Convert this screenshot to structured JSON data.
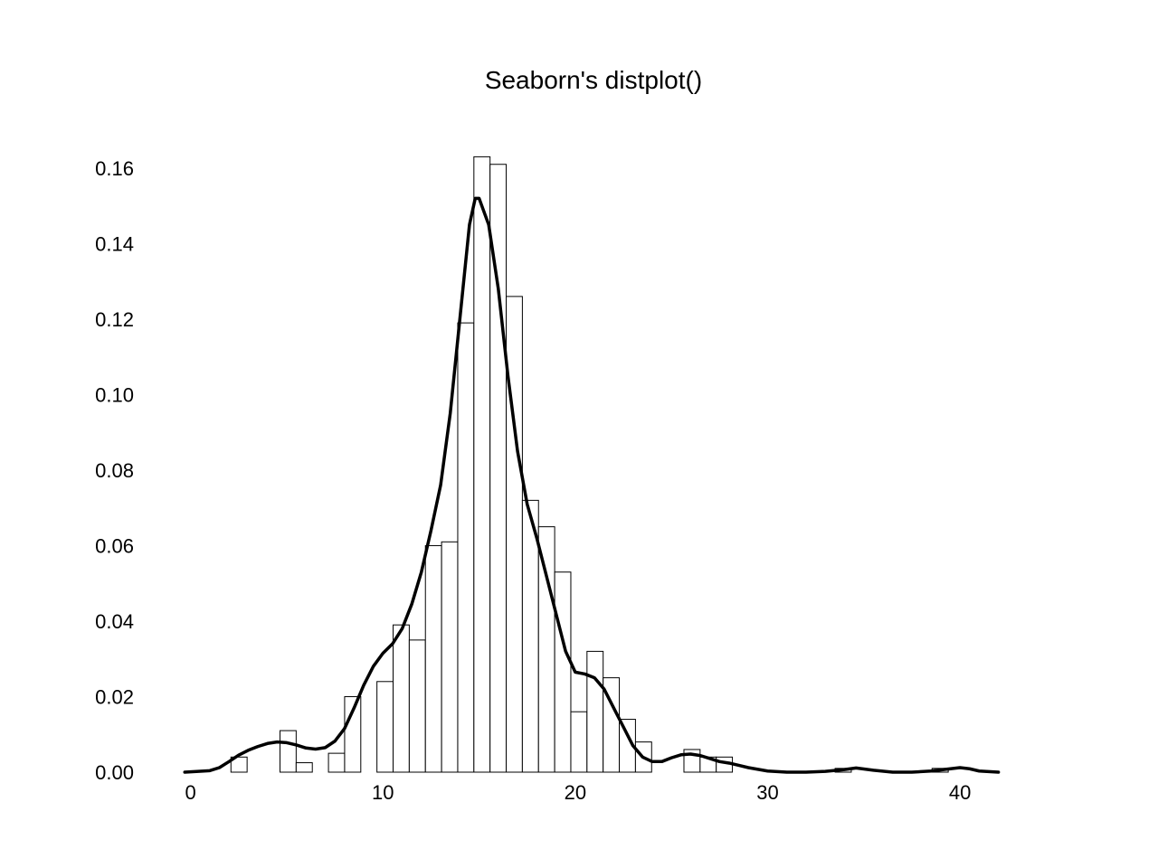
{
  "chart_data": {
    "type": "histogram+kde",
    "title": "Seaborn's distplot()",
    "xlabel": "",
    "ylabel": "",
    "xlim": [
      -0.5,
      42.3
    ],
    "ylim": [
      0,
      0.171
    ],
    "x_ticks": [
      0,
      10,
      20,
      30,
      40
    ],
    "x_tick_labels": [
      "0",
      "10",
      "20",
      "30",
      "40"
    ],
    "y_ticks": [
      0,
      0.02,
      0.04,
      0.06,
      0.08,
      0.1,
      0.12,
      0.14,
      0.16
    ],
    "y_tick_labels": [
      "0.00",
      "0.02",
      "0.04",
      "0.06",
      "0.08",
      "0.10",
      "0.12",
      "0.14",
      "0.16"
    ],
    "grid": false,
    "histogram": {
      "bin_width": 0.84,
      "bins": [
        {
          "x0": 2.1,
          "density": 0.004
        },
        {
          "x0": 4.65,
          "density": 0.011
        },
        {
          "x0": 5.49,
          "density": 0.0025
        },
        {
          "x0": 7.17,
          "density": 0.005
        },
        {
          "x0": 8.01,
          "density": 0.02
        },
        {
          "x0": 9.69,
          "density": 0.024
        },
        {
          "x0": 10.53,
          "density": 0.039
        },
        {
          "x0": 11.37,
          "density": 0.035
        },
        {
          "x0": 12.21,
          "density": 0.06
        },
        {
          "x0": 13.05,
          "density": 0.061
        },
        {
          "x0": 13.89,
          "density": 0.119
        },
        {
          "x0": 14.73,
          "density": 0.163
        },
        {
          "x0": 15.57,
          "density": 0.161
        },
        {
          "x0": 16.41,
          "density": 0.126
        },
        {
          "x0": 17.25,
          "density": 0.072
        },
        {
          "x0": 18.09,
          "density": 0.065
        },
        {
          "x0": 18.93,
          "density": 0.053
        },
        {
          "x0": 19.77,
          "density": 0.016
        },
        {
          "x0": 20.61,
          "density": 0.032
        },
        {
          "x0": 21.45,
          "density": 0.025
        },
        {
          "x0": 22.29,
          "density": 0.014
        },
        {
          "x0": 23.13,
          "density": 0.008
        },
        {
          "x0": 25.65,
          "density": 0.006
        },
        {
          "x0": 26.49,
          "density": 0.004
        },
        {
          "x0": 27.33,
          "density": 0.004
        },
        {
          "x0": 33.51,
          "density": 0.001
        },
        {
          "x0": 38.55,
          "density": 0.001
        }
      ]
    },
    "kde": {
      "x": [
        -0.3,
        1.0,
        1.5,
        2.0,
        2.5,
        3.0,
        3.5,
        4.0,
        4.5,
        5.0,
        5.5,
        6.0,
        6.5,
        7.0,
        7.5,
        8.0,
        8.5,
        9.0,
        9.5,
        10.0,
        10.5,
        11.0,
        11.5,
        12.0,
        12.5,
        13.0,
        13.5,
        14.0,
        14.5,
        14.8,
        15.0,
        15.5,
        16.0,
        16.5,
        17.0,
        17.5,
        18.0,
        18.5,
        19.0,
        19.5,
        20.0,
        20.5,
        21.0,
        21.5,
        22.0,
        22.5,
        23.0,
        23.5,
        24.0,
        24.5,
        25.0,
        25.5,
        26.0,
        26.5,
        27.0,
        27.5,
        28.0,
        28.5,
        29.0,
        30.0,
        31.0,
        32.0,
        33.0,
        34.0,
        34.6,
        35.5,
        36.5,
        37.5,
        38.5,
        39.5,
        40.0,
        40.5,
        41.0,
        42.0
      ],
      "y": [
        0.0,
        0.0004,
        0.0012,
        0.0028,
        0.0045,
        0.0058,
        0.0068,
        0.0076,
        0.008,
        0.0078,
        0.0072,
        0.0064,
        0.0061,
        0.0065,
        0.0082,
        0.0115,
        0.017,
        0.023,
        0.028,
        0.0315,
        0.034,
        0.038,
        0.0445,
        0.053,
        0.064,
        0.076,
        0.095,
        0.12,
        0.145,
        0.152,
        0.152,
        0.145,
        0.128,
        0.105,
        0.085,
        0.071,
        0.062,
        0.052,
        0.042,
        0.032,
        0.0265,
        0.026,
        0.025,
        0.022,
        0.017,
        0.012,
        0.007,
        0.004,
        0.0028,
        0.0028,
        0.0038,
        0.0046,
        0.0048,
        0.0044,
        0.0036,
        0.0028,
        0.0024,
        0.0018,
        0.0012,
        0.0003,
        0.0,
        0.0,
        0.0002,
        0.0007,
        0.0011,
        0.0005,
        0.0,
        0.0,
        0.0003,
        0.0009,
        0.0012,
        0.0009,
        0.0003,
        0.0
      ]
    }
  }
}
